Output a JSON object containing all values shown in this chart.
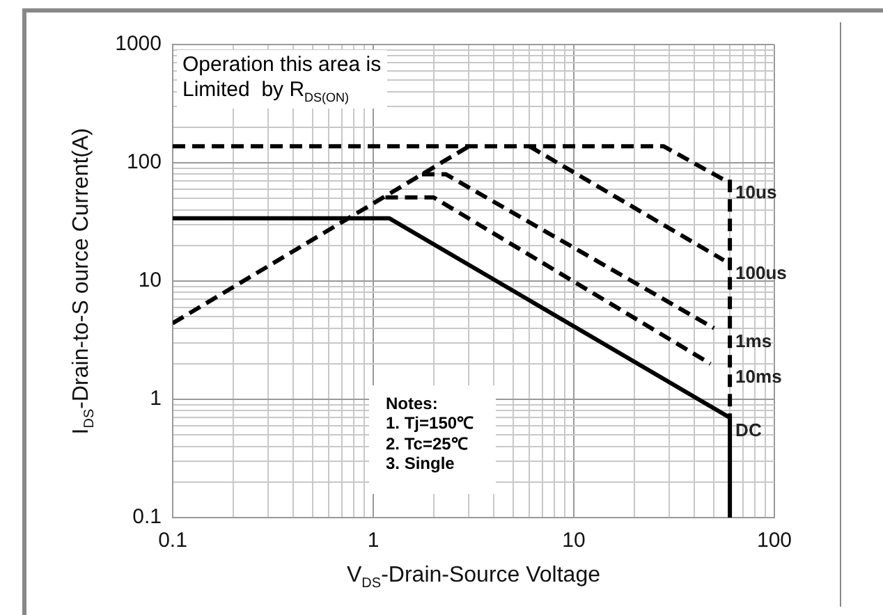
{
  "chart_data": {
    "type": "line",
    "xlabel": "V$_{DS}$-Drain-Source Voltage",
    "ylabel": "I$_{DS}$-Drain-to-S ource Current(A)",
    "log": "xy",
    "grid": true,
    "legend": false,
    "marker": "none",
    "xlim": [
      0.1,
      100
    ],
    "xticks": [
      0.1,
      1,
      10,
      100
    ],
    "ylim": [
      0.1,
      1000
    ],
    "yticks": [
      0.1,
      1,
      10,
      100,
      1000
    ],
    "annotations": [
      "Operation this area is\nLimited  by R$_{DS(ON)}$",
      "Notes:\n1. Tj=150℃\n2. Tc=25℃\n3. Single"
    ],
    "series": [
      {
        "color": "#000000",
        "line_style": "dashed",
        "x": [
          0.1,
          3
        ],
        "values": [
          4.4,
          138
        ]
      },
      {
        "name": "10us",
        "color": "#000000",
        "line_style": "dashed",
        "x": [
          0.1,
          28,
          56
        ],
        "values": [
          138,
          138,
          72
        ]
      },
      {
        "name": "100us",
        "color": "#000000",
        "line_style": "dashed",
        "x": [
          6,
          56
        ],
        "values": [
          138,
          15
        ]
      },
      {
        "name": "1ms",
        "color": "#000000",
        "line_style": "dashed",
        "x": [
          1.75,
          2.3,
          50
        ],
        "values": [
          80,
          80,
          4
        ]
      },
      {
        "name": "10ms",
        "color": "#000000",
        "line_style": "dashed",
        "x": [
          1.15,
          2,
          48
        ],
        "values": [
          51,
          51,
          2
        ]
      },
      {
        "color": "#000000",
        "line_style": "dashed",
        "x": [
          60,
          60
        ],
        "values": [
          72,
          0.7
        ]
      },
      {
        "name": "DC",
        "color": "#000000",
        "line_style": "solid",
        "x": [
          0.1,
          1.2,
          60,
          60
        ],
        "values": [
          34,
          34,
          0.7,
          0.1
        ]
      }
    ]
  }
}
